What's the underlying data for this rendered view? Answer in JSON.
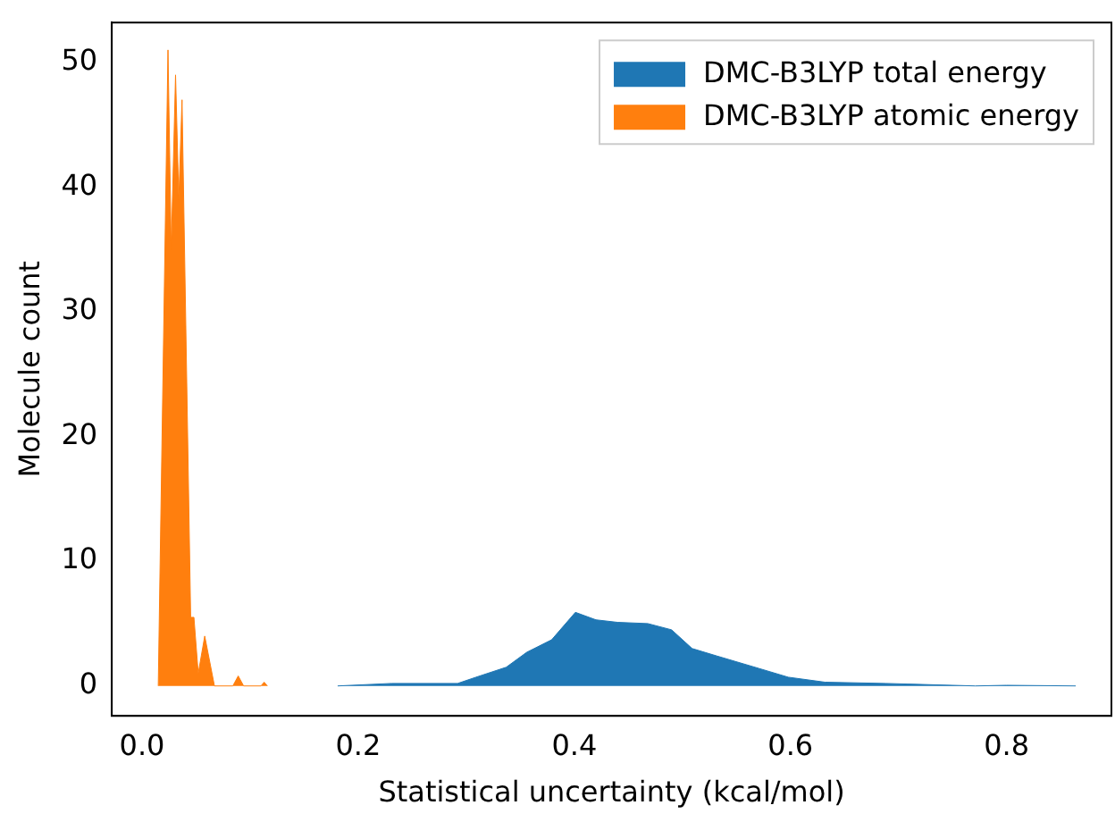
{
  "chart_data": {
    "type": "area",
    "xlabel": "Statistical uncertainty (kcal/mol)",
    "ylabel": "Molecule count",
    "xlim": [
      -0.028,
      0.897
    ],
    "ylim": [
      -2.4,
      53.2
    ],
    "xticks": [
      {
        "value": 0,
        "label": "0.0"
      },
      {
        "value": 0.2,
        "label": "0.2"
      },
      {
        "value": 0.4,
        "label": "0.4"
      },
      {
        "value": 0.6,
        "label": "0.6"
      },
      {
        "value": 0.8,
        "label": "0.8"
      }
    ],
    "yticks": [
      0,
      10,
      20,
      30,
      40,
      50
    ],
    "grid": false,
    "legend": "top right",
    "series": [
      {
        "name": "DMC-B3LYP total energy",
        "color": "#1f77b4",
        "x": [
          0.181,
          0.231,
          0.292,
          0.309,
          0.337,
          0.356,
          0.379,
          0.401,
          0.42,
          0.44,
          0.468,
          0.49,
          0.509,
          0.532,
          0.571,
          0.598,
          0.632,
          0.688,
          0.771,
          0.8,
          0.864
        ],
        "values": [
          0,
          0.2,
          0.2,
          0.7,
          1.5,
          2.7,
          3.7,
          5.9,
          5.3,
          5.1,
          5.0,
          4.5,
          3.0,
          2.4,
          1.4,
          0.7,
          0.3,
          0.2,
          0,
          0.05,
          0
        ]
      },
      {
        "name": "DMC-B3LYP atomic energy",
        "color": "#ff7f0e",
        "x": [
          0.015,
          0.024,
          0.027,
          0.031,
          0.034,
          0.037,
          0.045,
          0.048,
          0.052,
          0.058,
          0.067,
          0.084,
          0.089,
          0.094,
          0.11,
          0.113,
          0.116
        ],
        "values": [
          0,
          51,
          35,
          49,
          39,
          47,
          5.5,
          5.5,
          1,
          4,
          0,
          0,
          0.8,
          0,
          0,
          0.3,
          0
        ]
      }
    ]
  }
}
